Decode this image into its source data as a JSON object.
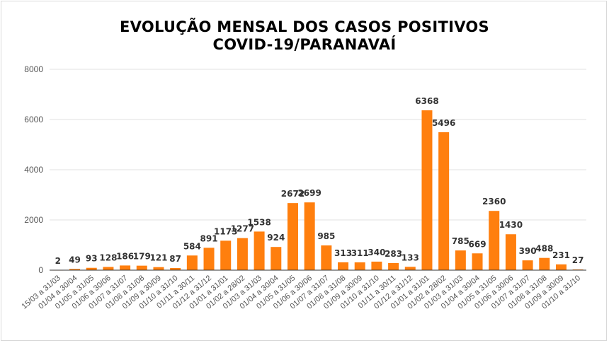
{
  "chart_data": {
    "type": "bar",
    "title_line1": "EVOLUÇÃO MENSAL DOS CASOS POSITIVOS",
    "title_line2": "COVID-19/PARANAVAÍ",
    "xlabel": "",
    "ylabel": "",
    "ylim": [
      0,
      8000
    ],
    "yticks": [
      "0",
      "2000",
      "4000",
      "6000",
      "8000"
    ],
    "grid": true,
    "legend": "none",
    "bar_color": "#ff7f0e",
    "categories": [
      "15/03 a 31/03",
      "01/04 a 30/04",
      "01/05 a 31/05",
      "01/06 a 30/06",
      "01/07 a 31/07",
      "01/08 a 31/08",
      "01/09 a 30/09",
      "01/10 a 31/10",
      "01/11 a 30/11",
      "01/12 a 31/12",
      "01/01 a 31/01",
      "01/02 a 28/02",
      "01/03 a 31/03",
      "01/04 a 30/04",
      "01/05 a 31/05",
      "01/06 a 30/06",
      "01/07 a 31/07",
      "01/08 a 31/08",
      "01/09 a 30/09",
      "01/10 a 31/10",
      "01/11 a 30/11",
      "01/12 a 31/12",
      "01/01 a 31/01",
      "01/02 a 28/02",
      "01/03 a 31/03",
      "01/04 a 30/04",
      "01/05 a 31/05",
      "01/06 a 30/06",
      "01/07 a 31/07",
      "01/08 a 31/08",
      "01/09 a 30/09",
      "01/10 a 31/10"
    ],
    "values": [
      2,
      49,
      93,
      128,
      186,
      179,
      121,
      87,
      584,
      891,
      1173,
      1277,
      1538,
      924,
      2672,
      2699,
      985,
      313,
      311,
      340,
      283,
      133,
      6368,
      5496,
      785,
      669,
      2360,
      1430,
      390,
      488,
      231,
      27
    ],
    "value_labels": [
      "2",
      "49",
      "93",
      "128",
      "186",
      "179",
      "121",
      "87",
      "584",
      "891",
      "1173",
      "1277",
      "1538",
      "924",
      "2672",
      "2699",
      "985",
      "313",
      "311",
      "340",
      "283",
      "133",
      "6368",
      "5496",
      "785",
      "669",
      "2360",
      "1430",
      "390",
      "488",
      "231",
      "27"
    ]
  }
}
